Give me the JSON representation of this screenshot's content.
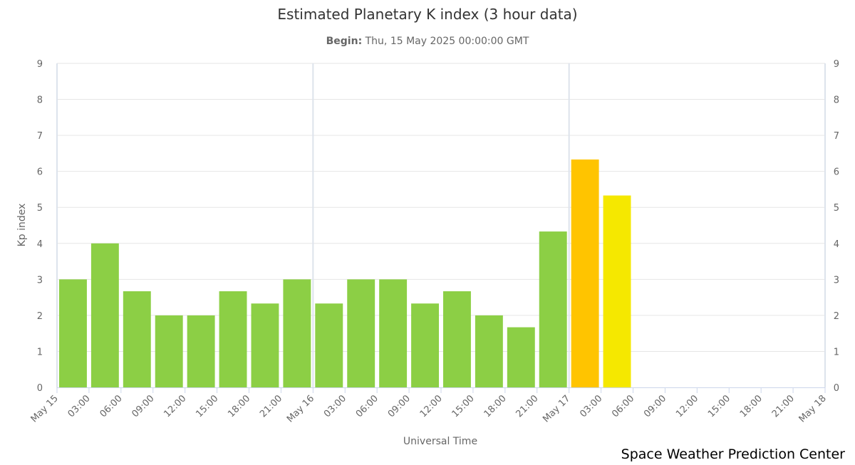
{
  "header": {
    "title": "Estimated Planetary K index (3 hour data)",
    "subtitle_label": "Begin:",
    "subtitle_value": "Thu, 15 May 2025 00:00:00 GMT"
  },
  "credit": "Space Weather Prediction Center",
  "chart_data": {
    "type": "bar",
    "title": "Estimated Planetary K index (3 hour data)",
    "xlabel": "Universal Time",
    "ylabel": "Kp index",
    "ylim": [
      0,
      9
    ],
    "yticks": [
      0,
      1,
      2,
      3,
      4,
      5,
      6,
      7,
      8,
      9
    ],
    "grid": true,
    "x_tick_labels": [
      "May 15",
      "03:00",
      "06:00",
      "09:00",
      "12:00",
      "15:00",
      "18:00",
      "21:00",
      "May 16",
      "03:00",
      "06:00",
      "09:00",
      "12:00",
      "15:00",
      "18:00",
      "21:00",
      "May 17",
      "03:00",
      "06:00",
      "09:00",
      "12:00",
      "15:00",
      "18:00",
      "21:00",
      "May 18"
    ],
    "categories": [
      "May 15 00:00",
      "May 15 03:00",
      "May 15 06:00",
      "May 15 09:00",
      "May 15 12:00",
      "May 15 15:00",
      "May 15 18:00",
      "May 15 21:00",
      "May 16 00:00",
      "May 16 03:00",
      "May 16 06:00",
      "May 16 09:00",
      "May 16 12:00",
      "May 16 15:00",
      "May 16 18:00",
      "May 16 21:00",
      "May 17 00:00",
      "May 17 03:00"
    ],
    "values": [
      3.0,
      4.0,
      2.67,
      2.0,
      2.0,
      2.67,
      2.33,
      3.0,
      2.33,
      3.0,
      3.0,
      2.33,
      2.67,
      2.0,
      1.67,
      4.33,
      6.33,
      5.33
    ],
    "bar_colors": [
      "#8ccf45",
      "#8ccf45",
      "#8ccf45",
      "#8ccf45",
      "#8ccf45",
      "#8ccf45",
      "#8ccf45",
      "#8ccf45",
      "#8ccf45",
      "#8ccf45",
      "#8ccf45",
      "#8ccf45",
      "#8ccf45",
      "#8ccf45",
      "#8ccf45",
      "#8ccf45",
      "#ffc400",
      "#f5e800"
    ],
    "colors": {
      "gridline": "#e6e6e6",
      "day_line": "#dde3ec",
      "axis": "#ccd6eb"
    }
  }
}
